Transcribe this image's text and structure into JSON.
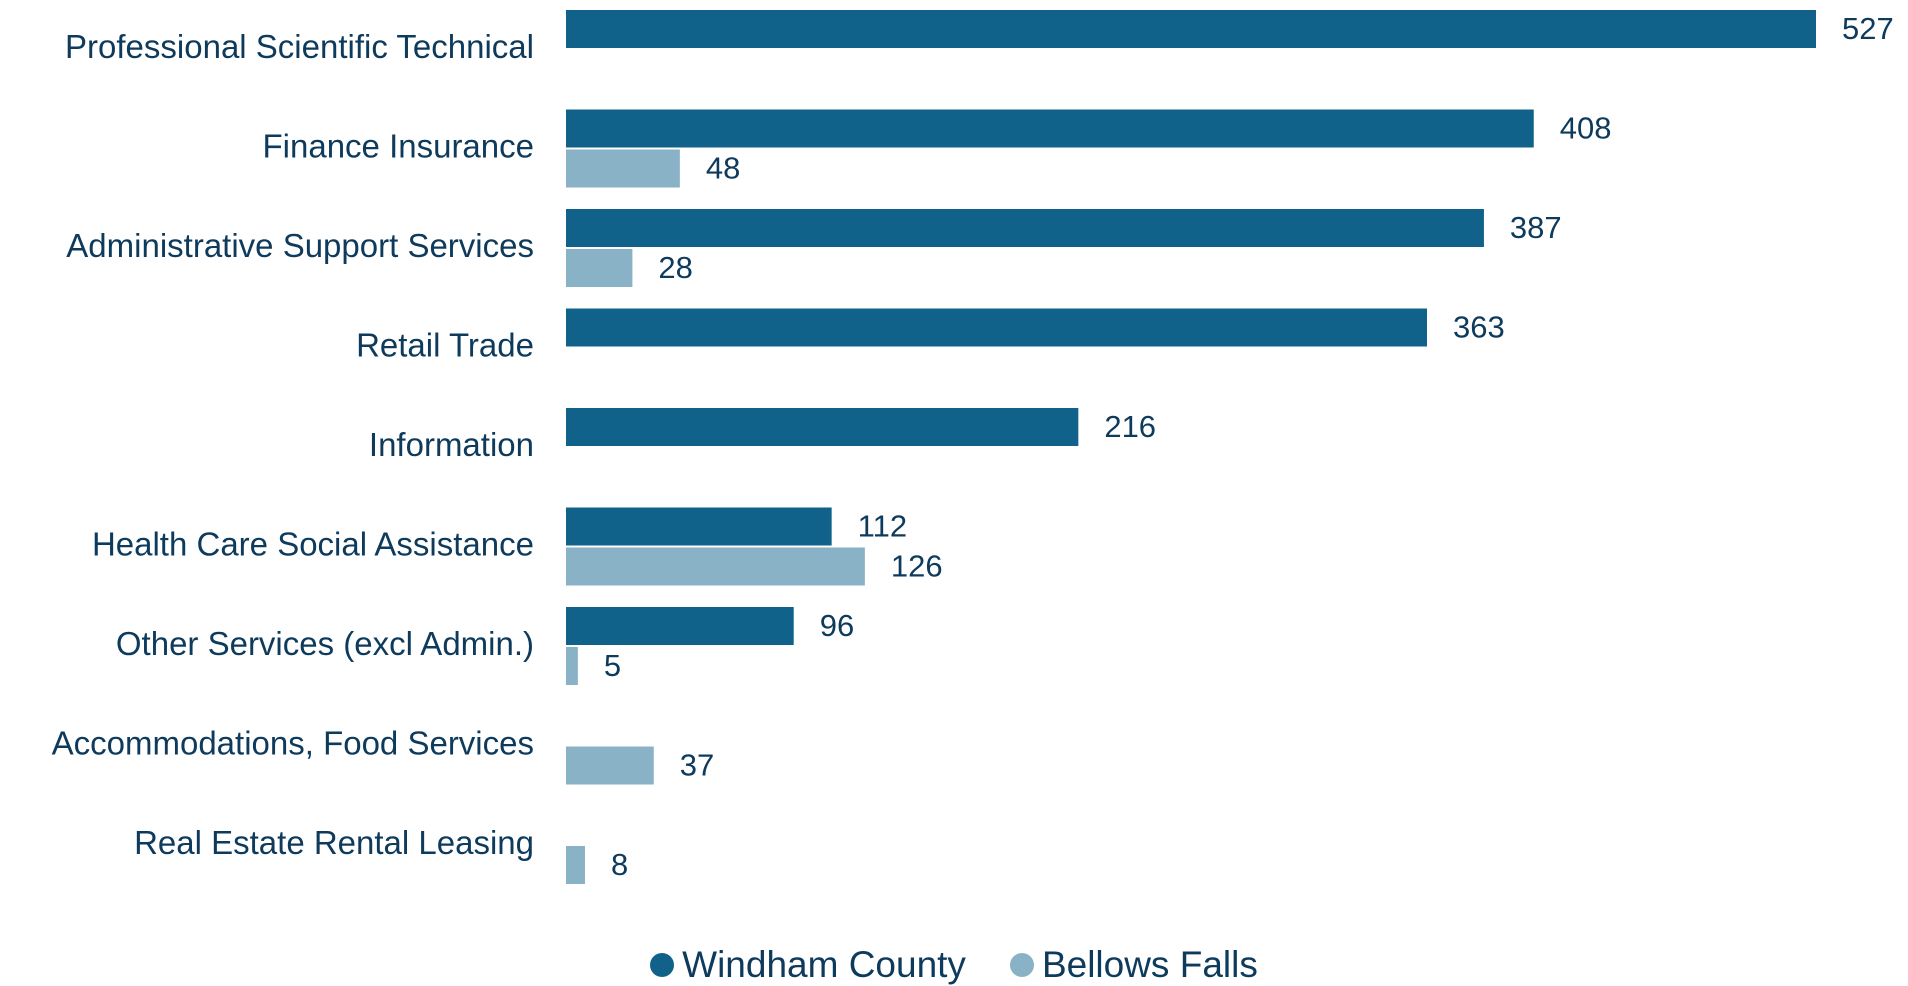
{
  "colors": {
    "windham": "#10628a",
    "bellows": "#8ab2c6",
    "text": "#0e3a5c"
  },
  "legend": {
    "windham_label": "Windham County",
    "bellows_label": "Bellows Falls"
  },
  "chart_data": {
    "type": "bar",
    "orientation": "horizontal",
    "categories": [
      "Professional Scientific Technical",
      "Finance Insurance",
      "Administrative Support Services",
      "Retail Trade",
      "Information",
      "Health Care Social Assistance",
      "Other Services (excl Admin.)",
      "Accommodations, Food Services",
      "Real Estate Rental Leasing"
    ],
    "series": [
      {
        "name": "Windham County",
        "values": [
          527,
          408,
          387,
          363,
          216,
          112,
          96,
          null,
          null
        ]
      },
      {
        "name": "Bellows Falls",
        "values": [
          null,
          48,
          28,
          null,
          null,
          126,
          5,
          37,
          8
        ]
      }
    ],
    "xlim": [
      0,
      527
    ],
    "grid": false,
    "legend_position": "bottom"
  }
}
